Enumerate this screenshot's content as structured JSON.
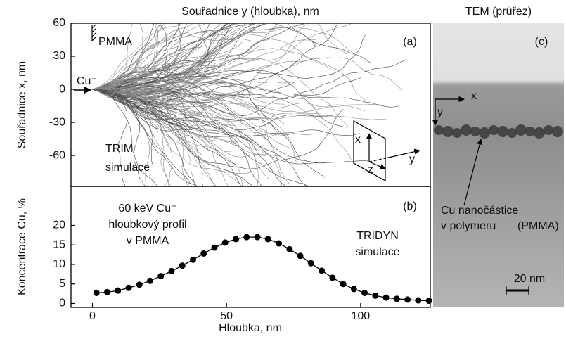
{
  "chart_data": [
    {
      "type": "trajectories",
      "title": "Souřadnice y (hloubka), nm",
      "ylabel": "Souřadnice x, nm",
      "ylim": [
        -88,
        60
      ],
      "yticks": [
        60,
        30,
        0,
        -30,
        -60
      ],
      "annotations": [
        "PMMA",
        "Cu⁻",
        "(a)",
        "TRIM",
        "simulace",
        "x",
        "y",
        "z"
      ]
    },
    {
      "type": "line",
      "xlabel": "Hloubka, nm",
      "ylabel": "Koncentrace Cu, %",
      "color": "#000000",
      "x": [
        1.5,
        5.5,
        9.5,
        13.5,
        17.5,
        21.5,
        25.5,
        29.5,
        33.5,
        37.5,
        41.5,
        45.5,
        49.5,
        53.5,
        57.5,
        61.5,
        65.5,
        69.5,
        73.5,
        77.5,
        81.5,
        85.5,
        89.5,
        93.5,
        97.5,
        101.5,
        105.5,
        109.5,
        113.5,
        117.5,
        121.5,
        125.5
      ],
      "values": [
        2.7,
        2.9,
        3.3,
        4,
        4.8,
        5.8,
        7,
        8.3,
        9.7,
        11.2,
        12.8,
        14.3,
        15.6,
        16.5,
        17,
        17,
        16.5,
        15.4,
        13.9,
        12.2,
        10.3,
        8.4,
        6.6,
        5,
        3.7,
        2.7,
        2,
        1.5,
        1.2,
        1,
        0.8,
        0.7
      ],
      "xlim": [
        -8,
        126
      ],
      "xticks": [
        0,
        50,
        100
      ],
      "ylim": [
        -1,
        30
      ],
      "yticks": [
        0,
        5,
        10,
        15,
        20
      ],
      "annotations": [
        "60 keV Cu⁻",
        "hloubkový profil",
        "v PMMA",
        "(b)",
        "TRIDYN",
        "simulace"
      ]
    },
    {
      "type": "image",
      "title": "TEM (průřez)",
      "annotations": [
        "(c)",
        "x",
        "y",
        "Cu nanočástice",
        "v polymeru",
        "(PMMA)",
        "20 nm"
      ]
    }
  ]
}
